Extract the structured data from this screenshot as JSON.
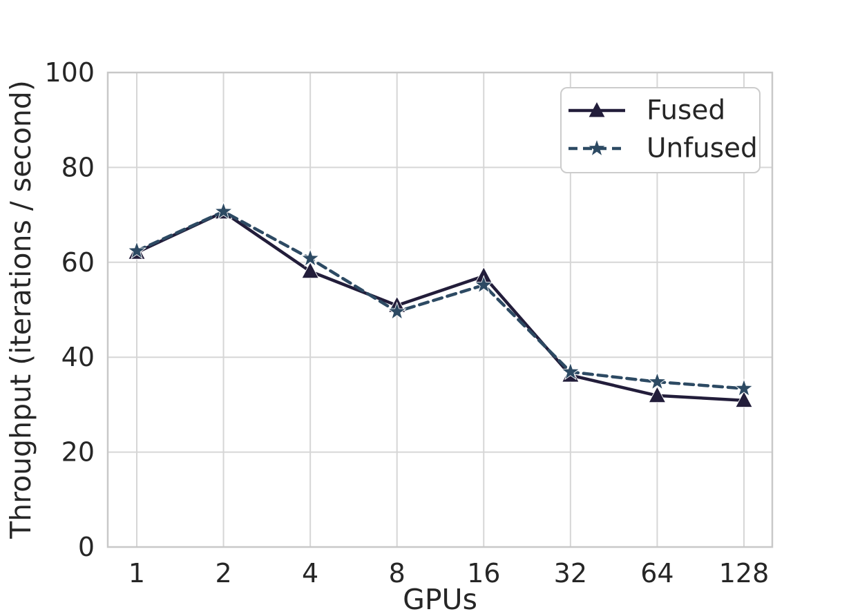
{
  "chart_data": {
    "type": "line",
    "title": "",
    "xlabel": "GPUs",
    "ylabel": "Throughput (iterations / second)",
    "categories": [
      "1",
      "2",
      "4",
      "8",
      "16",
      "32",
      "64",
      "128"
    ],
    "x_scale": "log2-categorical",
    "ylim": [
      0,
      100
    ],
    "yticks": [
      0,
      20,
      40,
      60,
      80,
      100
    ],
    "grid": true,
    "legend": {
      "position": "upper right",
      "entries": [
        "Fused",
        "Unfused"
      ]
    },
    "series": [
      {
        "name": "Fused",
        "line_style": "solid",
        "marker": "triangle",
        "color": "#221d3a",
        "values": [
          62.1,
          70.6,
          58.1,
          50.9,
          57.1,
          36.2,
          31.9,
          30.9
        ]
      },
      {
        "name": "Unfused",
        "line_style": "dashed",
        "marker": "star",
        "color": "#2d4a63",
        "values": [
          62.4,
          70.7,
          60.8,
          49.6,
          55.2,
          36.9,
          34.8,
          33.4
        ]
      }
    ],
    "colors": {
      "background": "#ffffff",
      "grid": "#d6d6d6",
      "spine": "#c8c8c8",
      "text": "#262626",
      "legend_border": "#cccccc"
    }
  }
}
